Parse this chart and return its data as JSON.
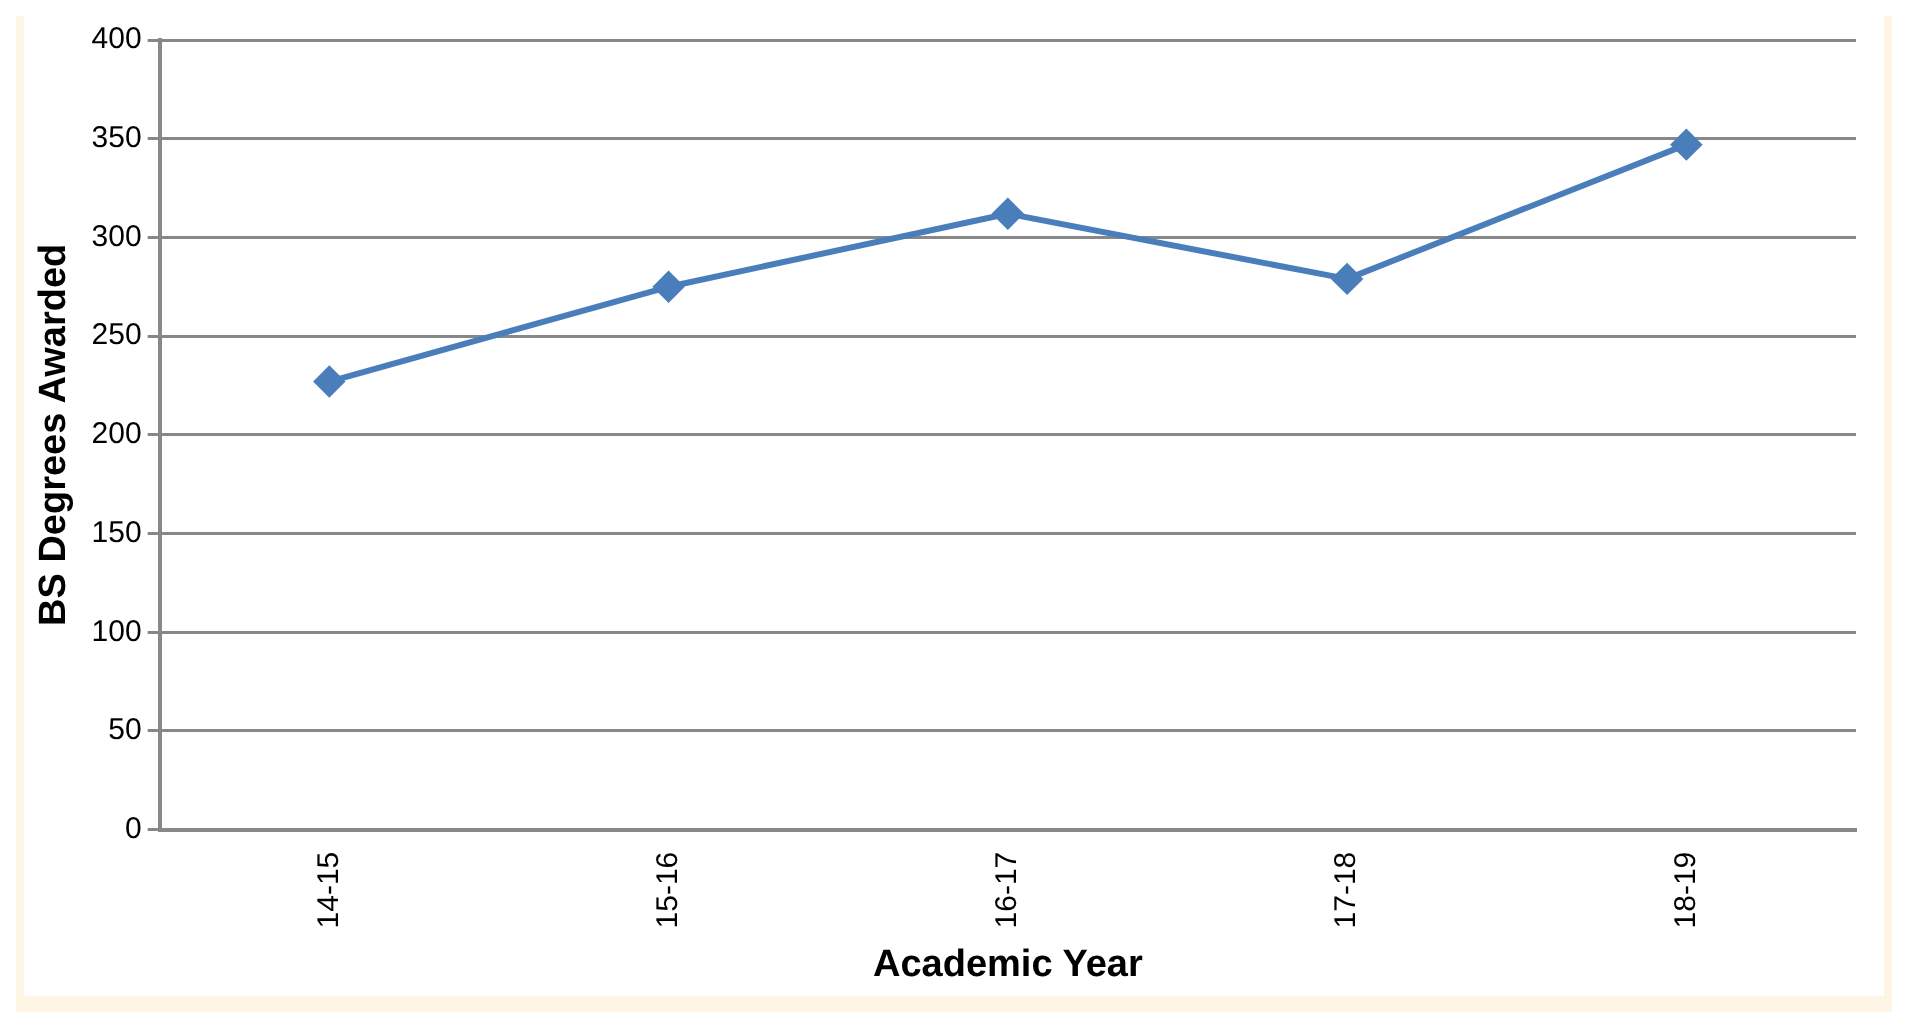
{
  "chart_data": {
    "type": "line",
    "xlabel": "Academic Year",
    "ylabel": "BS Degrees Awarded",
    "categories": [
      "14-15",
      "15-16",
      "16-17",
      "17-18",
      "18-19"
    ],
    "series": [
      {
        "color": "#4a7ebb",
        "values": [
          227,
          275,
          312,
          279,
          347
        ]
      }
    ],
    "ylim": [
      0,
      400
    ],
    "yticks": [
      0,
      50,
      100,
      150,
      200,
      250,
      300,
      350,
      400
    ],
    "grid": "y",
    "legend": false,
    "marker": "diamond",
    "line_style": "solid"
  }
}
